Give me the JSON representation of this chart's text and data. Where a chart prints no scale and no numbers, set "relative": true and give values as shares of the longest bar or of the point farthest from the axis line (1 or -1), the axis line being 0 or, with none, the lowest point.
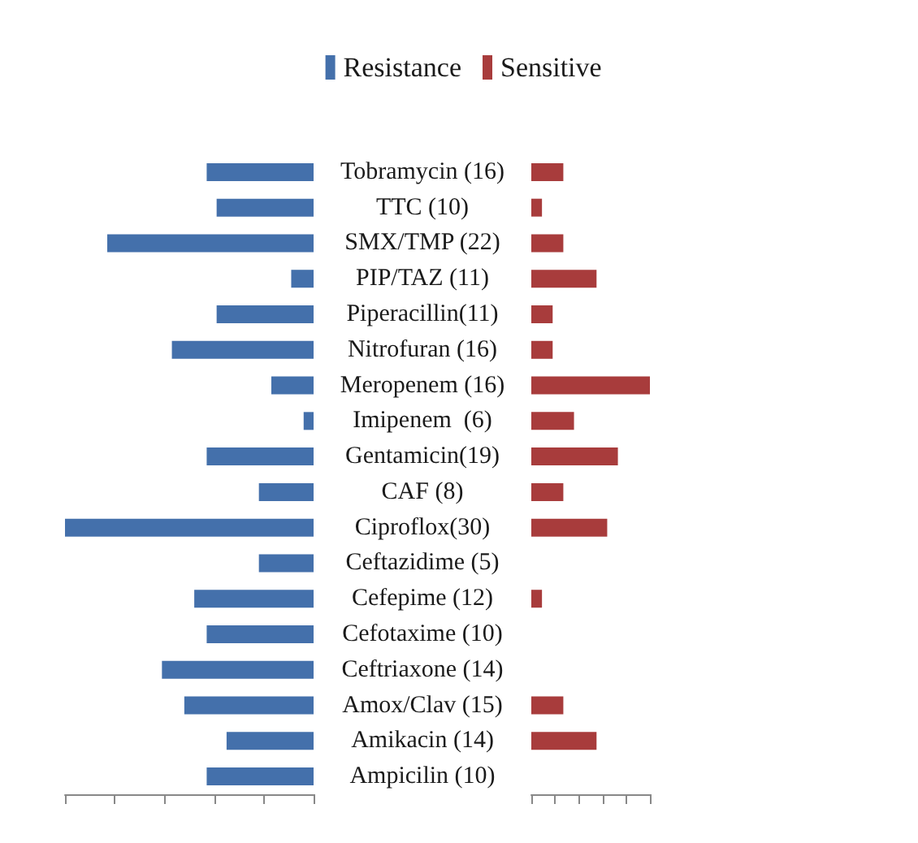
{
  "chart_data": [
    {
      "type": "bar",
      "orientation": "horizontal",
      "relative": true,
      "legend": "top",
      "tick_labels": "y",
      "categories": [
        "Tobramycin (16)",
        "TTC (10)",
        "SMX/TMP (22)",
        "PIP/TAZ (11)",
        "Piperacillin(11)",
        "Nitrofuran (16)",
        "Meropenem (16)",
        "Imipenem  (6)",
        "Gentamicin(19)",
        "CAF (8)",
        "Ciproflox(30)",
        "Ceftazidime (5)",
        "Cefepime (12)",
        "Cefotaxime (10)",
        "Ceftriaxone (14)",
        "Amox/Clav (15)",
        "Amikacin (14)",
        "Ampicilin (10)"
      ],
      "series": [
        {
          "name": "Resistance",
          "color": "#4470ab",
          "values": [
            -0.43,
            -0.39,
            -0.83,
            -0.09,
            -0.39,
            -0.57,
            -0.17,
            -0.04,
            -0.43,
            -0.22,
            -1,
            -0.22,
            -0.48,
            -0.43,
            -0.61,
            -0.52,
            -0.35,
            -0.43
          ]
        }
      ]
    },
    {
      "type": "bar",
      "orientation": "horizontal",
      "relative": true,
      "legend": "top",
      "tick_labels": false,
      "categories": [
        null,
        null,
        null,
        null,
        null,
        null,
        null,
        null,
        null,
        null,
        null,
        null,
        null,
        null,
        null,
        null,
        null,
        null
      ],
      "series": [
        {
          "name": "Sensitive",
          "color": "#a83c3c",
          "values": [
            0.27,
            0.09,
            0.27,
            0.55,
            0.18,
            0.18,
            1,
            0.36,
            0.73,
            0.27,
            0.64,
            0,
            0.09,
            0,
            0,
            0.27,
            0.55,
            0
          ]
        }
      ]
    }
  ]
}
